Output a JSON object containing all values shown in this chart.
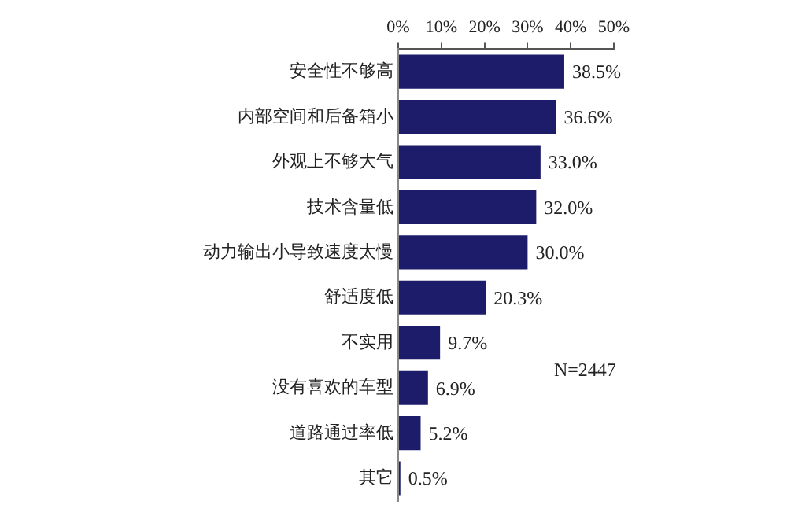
{
  "chart_data": {
    "type": "bar",
    "orientation": "horizontal",
    "categories": [
      "安全性不够高",
      "内部空间和后备箱小",
      "外观上不够大气",
      "技术含量低",
      "动力输出小导致速度太慢",
      "舒适度低",
      "不实用",
      "没有喜欢的车型",
      "道路通过率低",
      "其它"
    ],
    "values": [
      38.5,
      36.6,
      33.0,
      32.0,
      30.0,
      20.3,
      9.7,
      6.9,
      5.2,
      0.5
    ],
    "value_labels": [
      "38.5%",
      "36.6%",
      "33.0%",
      "32.0%",
      "30.0%",
      "20.3%",
      "9.7%",
      "6.9%",
      "5.2%",
      "0.5%"
    ],
    "color": "#1c1c6b",
    "xlim": [
      0,
      50
    ],
    "xticks": [
      {
        "value": 0,
        "label": "0%"
      },
      {
        "value": 10,
        "label": "10%"
      },
      {
        "value": 20,
        "label": "20%"
      },
      {
        "value": 30,
        "label": "30%"
      },
      {
        "value": 40,
        "label": "40%"
      },
      {
        "value": 50,
        "label": "50%"
      }
    ],
    "annotations": [
      "N=2447"
    ],
    "legend": false
  }
}
